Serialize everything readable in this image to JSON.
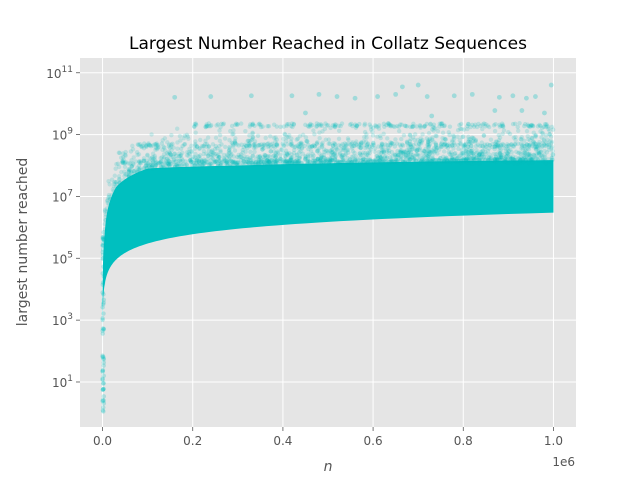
{
  "chart_data": {
    "type": "scatter",
    "title": "Largest Number Reached in Collatz Sequences",
    "xlabel": "n",
    "ylabel": "largest number reached",
    "x_offset_text": "1e6",
    "xscale": "linear",
    "yscale": "log",
    "xlim": [
      -50000,
      1050000
    ],
    "ylim": [
      0.35,
      300000000000
    ],
    "xticks": [
      {
        "value": 0,
        "label": "0.0"
      },
      {
        "value": 200000,
        "label": "0.2"
      },
      {
        "value": 400000,
        "label": "0.4"
      },
      {
        "value": 600000,
        "label": "0.6"
      },
      {
        "value": 800000,
        "label": "0.8"
      },
      {
        "value": 1000000,
        "label": "1.0"
      }
    ],
    "yticks": [
      {
        "value": 10,
        "base": "10",
        "exp": "1"
      },
      {
        "value": 1000,
        "base": "10",
        "exp": "3"
      },
      {
        "value": 100000,
        "base": "10",
        "exp": "5"
      },
      {
        "value": 10000000,
        "base": "10",
        "exp": "7"
      },
      {
        "value": 1000000000,
        "base": "10",
        "exp": "9"
      },
      {
        "value": 100000000000,
        "base": "10",
        "exp": "11"
      }
    ],
    "grid": true,
    "style": "ggplot",
    "marker_color": "#00bfbf",
    "n_range": [
      1,
      1000000
    ],
    "lower_envelope": [
      {
        "n": 1,
        "max": 1
      },
      {
        "n": 3,
        "max": 16
      },
      {
        "n": 5000,
        "max": 15000
      },
      {
        "n": 50000,
        "max": 150000
      },
      {
        "n": 100000,
        "max": 300000
      },
      {
        "n": 200000,
        "max": 600000
      },
      {
        "n": 400000,
        "max": 1200000
      },
      {
        "n": 600000,
        "max": 1800000
      },
      {
        "n": 800000,
        "max": 2400000
      },
      {
        "n": 1000000,
        "max": 3000000
      }
    ],
    "dense_upper_edge": [
      {
        "n": 1,
        "max": 16
      },
      {
        "n": 3000,
        "max": 250000
      },
      {
        "n": 10000,
        "max": 3000000
      },
      {
        "n": 30000,
        "max": 20000000
      },
      {
        "n": 100000,
        "max": 80000000
      },
      {
        "n": 300000,
        "max": 100000000
      },
      {
        "n": 1000000,
        "max": 150000000
      }
    ],
    "outliers": [
      {
        "n": 160000,
        "max": 16000000000
      },
      {
        "n": 240000,
        "max": 17000000000
      },
      {
        "n": 330000,
        "max": 18000000000
      },
      {
        "n": 420000,
        "max": 18000000000
      },
      {
        "n": 480000,
        "max": 20000000000
      },
      {
        "n": 520000,
        "max": 17000000000
      },
      {
        "n": 560000,
        "max": 15000000000
      },
      {
        "n": 610000,
        "max": 17000000000
      },
      {
        "n": 650000,
        "max": 20000000000
      },
      {
        "n": 665000,
        "max": 35000000000
      },
      {
        "n": 700000,
        "max": 40000000000
      },
      {
        "n": 720000,
        "max": 17000000000
      },
      {
        "n": 780000,
        "max": 18000000000
      },
      {
        "n": 820000,
        "max": 20000000000
      },
      {
        "n": 880000,
        "max": 16000000000
      },
      {
        "n": 910000,
        "max": 18000000000
      },
      {
        "n": 940000,
        "max": 15000000000
      },
      {
        "n": 960000,
        "max": 17000000000
      },
      {
        "n": 995000,
        "max": 40000000000
      },
      {
        "n": 450000,
        "max": 5000000000
      },
      {
        "n": 870000,
        "max": 6000000000
      },
      {
        "n": 730000,
        "max": 4000000000
      },
      {
        "n": 930000,
        "max": 6000000000
      },
      {
        "n": 980000,
        "max": 5000000000
      }
    ]
  }
}
